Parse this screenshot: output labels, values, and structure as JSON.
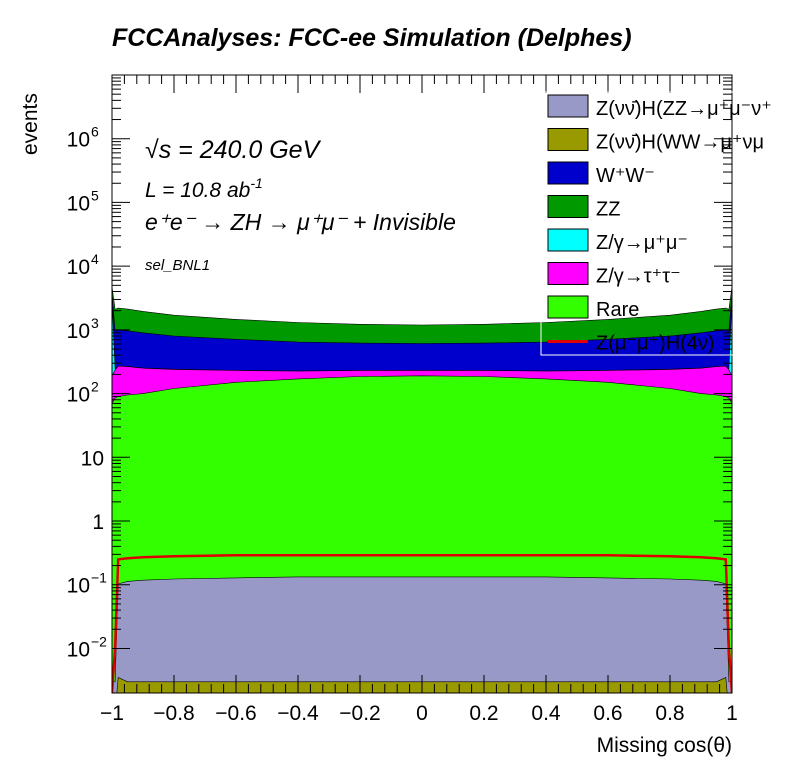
{
  "chart_data": {
    "type": "area",
    "title": "FCCAnalyses: FCC-ee Simulation (Delphes)",
    "xlabel": "Missing cos(θ)",
    "ylabel": "events",
    "xlim": [
      -1,
      1
    ],
    "ylim": [
      0.002,
      10000000
    ],
    "y_scale": "log",
    "stacked": true,
    "grid": false,
    "legend_position": "top-right",
    "x_ticks": [
      {
        "value": -1,
        "label": "−1"
      },
      {
        "value": -0.8,
        "label": "−0.8"
      },
      {
        "value": -0.6,
        "label": "−0.6"
      },
      {
        "value": -0.4,
        "label": "−0.4"
      },
      {
        "value": -0.2,
        "label": "−0.2"
      },
      {
        "value": 0,
        "label": "0"
      },
      {
        "value": 0.2,
        "label": "0.2"
      },
      {
        "value": 0.4,
        "label": "0.4"
      },
      {
        "value": 0.6,
        "label": "0.6"
      },
      {
        "value": 0.8,
        "label": "0.8"
      },
      {
        "value": 1,
        "label": "1"
      }
    ],
    "y_ticks": [
      {
        "value": 0.01,
        "base": "10",
        "exp": "−2"
      },
      {
        "value": 0.1,
        "base": "10",
        "exp": "−1"
      },
      {
        "value": 1,
        "base": "1",
        "exp": ""
      },
      {
        "value": 10,
        "base": "10",
        "exp": ""
      },
      {
        "value": 100,
        "base": "10",
        "exp": "2"
      },
      {
        "value": 1000,
        "base": "10",
        "exp": "3"
      },
      {
        "value": 10000,
        "base": "10",
        "exp": "4"
      },
      {
        "value": 100000,
        "base": "10",
        "exp": "5"
      },
      {
        "value": 1000000,
        "base": "10",
        "exp": "6"
      }
    ],
    "annotations": {
      "sqrt_s": "√s = 240.0 GeV",
      "lumi": "L = 10.8 ab",
      "lumi_exp": "-1",
      "process": "e⁺e⁻ → ZH → μ⁺μ⁻ + Invisible",
      "selection": "sel_BNL1"
    },
    "x_points": [
      -1.0,
      -0.99,
      -0.98,
      -0.95,
      -0.9,
      -0.8,
      -0.6,
      -0.4,
      -0.2,
      0.0,
      0.2,
      0.4,
      0.6,
      0.8,
      0.9,
      0.95,
      0.98,
      0.99,
      1.0
    ],
    "series": [
      {
        "name": "Z(νν̄)H(ZZ→μ⁺μ⁻ν⁺",
        "color": "#9999c8",
        "kind": "stack",
        "values": [
          0.002,
          0.002,
          0.1,
          0.11,
          0.115,
          0.12,
          0.125,
          0.13,
          0.13,
          0.13,
          0.13,
          0.13,
          0.125,
          0.12,
          0.115,
          0.11,
          0.1,
          0.002,
          0.002
        ]
      },
      {
        "name": "Z(νν̄)H(WW→μ⁺νμ",
        "color": "#999900",
        "kind": "stack",
        "values": [
          0.001,
          0.001,
          0.0035,
          0.003,
          0.003,
          0.003,
          0.003,
          0.003,
          0.003,
          0.003,
          0.003,
          0.003,
          0.003,
          0.003,
          0.003,
          0.003,
          0.0035,
          0.001,
          0.001
        ]
      },
      {
        "name": "Rare",
        "color": "#33ff00",
        "kind": "stack",
        "values": [
          70,
          85,
          90,
          95,
          100,
          120,
          150,
          170,
          185,
          190,
          185,
          170,
          150,
          120,
          100,
          95,
          90,
          85,
          70
        ]
      },
      {
        "name": "Z/γ→τ⁺τ⁻",
        "color": "#ff00ff",
        "kind": "stack",
        "values": [
          120,
          150,
          180,
          170,
          150,
          120,
          80,
          55,
          45,
          40,
          45,
          55,
          80,
          120,
          150,
          170,
          180,
          150,
          120
        ]
      },
      {
        "name": "Z/γ→μ⁺μ⁻",
        "color": "#00ffff",
        "kind": "stack",
        "values": [
          3000,
          10,
          1,
          1,
          1,
          1,
          1,
          1,
          1,
          1,
          1,
          1,
          1,
          1,
          1,
          1,
          1,
          10,
          3000
        ]
      },
      {
        "name": "W⁺W⁻",
        "color": "#0000cc",
        "kind": "stack",
        "values": [
          600,
          700,
          730,
          700,
          650,
          560,
          480,
          420,
          390,
          380,
          390,
          420,
          480,
          560,
          650,
          700,
          730,
          700,
          600
        ]
      },
      {
        "name": "ZZ",
        "color": "#009900",
        "kind": "stack",
        "values": [
          1000,
          1150,
          1200,
          1150,
          1050,
          900,
          750,
          660,
          600,
          580,
          600,
          660,
          750,
          900,
          1050,
          1150,
          1200,
          1150,
          1000
        ]
      },
      {
        "name": "Z(μ⁻μ⁺)H(4ν)",
        "color": "#dd0000",
        "kind": "line",
        "values": [
          0.002,
          0.01,
          0.25,
          0.26,
          0.27,
          0.28,
          0.29,
          0.29,
          0.29,
          0.29,
          0.29,
          0.29,
          0.29,
          0.28,
          0.27,
          0.26,
          0.25,
          0.01,
          0.002
        ]
      }
    ],
    "legend_entries": [
      {
        "label": "Z(νν̄)H(ZZ→μ⁺μ⁻ν⁺",
        "color": "#9999c8",
        "kind": "box"
      },
      {
        "label": "Z(νν̄)H(WW→μ⁺νμ",
        "color": "#999900",
        "kind": "box"
      },
      {
        "label": "W⁺W⁻",
        "color": "#0000cc",
        "kind": "box"
      },
      {
        "label": "ZZ",
        "color": "#009900",
        "kind": "box"
      },
      {
        "label": "Z/γ→μ⁺μ⁻",
        "color": "#00ffff",
        "kind": "box"
      },
      {
        "label": "Z/γ→τ⁺τ⁻",
        "color": "#ff00ff",
        "kind": "box"
      },
      {
        "label": "Rare",
        "color": "#33ff00",
        "kind": "box"
      },
      {
        "label": "Z(μ⁻μ⁺)H(4ν)",
        "color": "#dd0000",
        "kind": "line"
      }
    ],
    "stack_order": [
      1,
      0,
      2,
      3,
      4,
      5,
      6
    ]
  }
}
